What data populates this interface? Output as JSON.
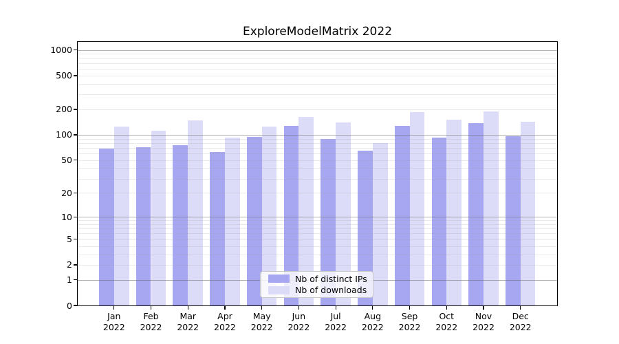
{
  "chart_data": {
    "type": "bar",
    "title": "ExploreModelMatrix 2022",
    "scale": "log1p",
    "x": {
      "months": [
        "Jan",
        "Feb",
        "Mar",
        "Apr",
        "May",
        "Jun",
        "Jul",
        "Aug",
        "Sep",
        "Oct",
        "Nov",
        "Dec"
      ],
      "year": "2022"
    },
    "series": [
      {
        "name": "Nb of distinct IPs",
        "color": "#a6a6f1",
        "values": [
          69,
          71,
          75,
          62,
          94,
          127,
          89,
          65,
          127,
          92,
          138,
          97
        ]
      },
      {
        "name": "Nb of downloads",
        "color": "#dcdcf8",
        "values": [
          125,
          113,
          147,
          93,
          125,
          164,
          139,
          80,
          186,
          151,
          190,
          142
        ]
      }
    ],
    "y_axis": {
      "ticks": [
        0,
        1,
        2,
        5,
        10,
        20,
        50,
        100,
        200,
        500,
        1000
      ],
      "max": 1244,
      "major_gridlines": [
        1,
        10,
        100,
        1000
      ]
    },
    "grid": {
      "major_color": "rgba(100,100,100,0.50)",
      "minor_color": "rgba(160,160,160,0.22)"
    },
    "legend": {
      "position": "lower center"
    },
    "colors": {
      "spine": "#000000",
      "background": "#ffffff"
    }
  }
}
